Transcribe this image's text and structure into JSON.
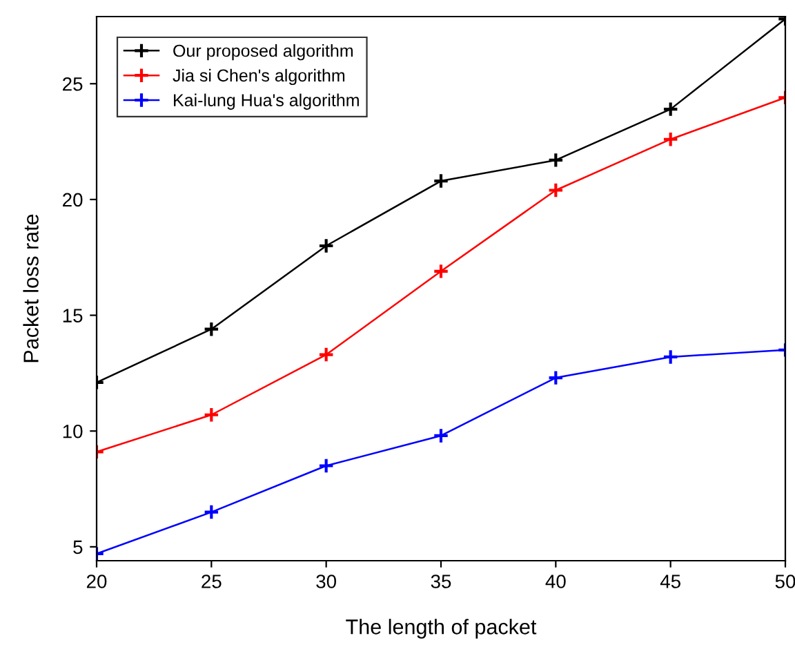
{
  "chart_data": {
    "type": "line",
    "xlabel": "The length of packet",
    "ylabel": "Packet loss rate",
    "x": [
      20,
      25,
      30,
      35,
      40,
      45,
      50
    ],
    "series": [
      {
        "name": "Our proposed algorithm",
        "color": "#000000",
        "values": [
          12.1,
          14.4,
          18.0,
          20.8,
          21.7,
          23.9,
          27.8
        ]
      },
      {
        "name": "Jia si Chen's algorithm",
        "color": "#ff0000",
        "values": [
          9.1,
          10.7,
          13.3,
          16.9,
          20.4,
          22.6,
          24.4
        ]
      },
      {
        "name": "Kai-lung Hua's algorithm",
        "color": "#0000ff",
        "values": [
          4.7,
          6.5,
          8.5,
          9.8,
          12.3,
          13.2,
          13.5
        ]
      }
    ],
    "xlim": [
      20,
      50
    ],
    "xticks": [
      20,
      25,
      30,
      35,
      40,
      45,
      50
    ],
    "ylim": [
      4.4,
      27.9
    ],
    "yticks": [
      5,
      10,
      15,
      20,
      25
    ],
    "legend": "top left",
    "marker": "cross",
    "grid": false
  }
}
